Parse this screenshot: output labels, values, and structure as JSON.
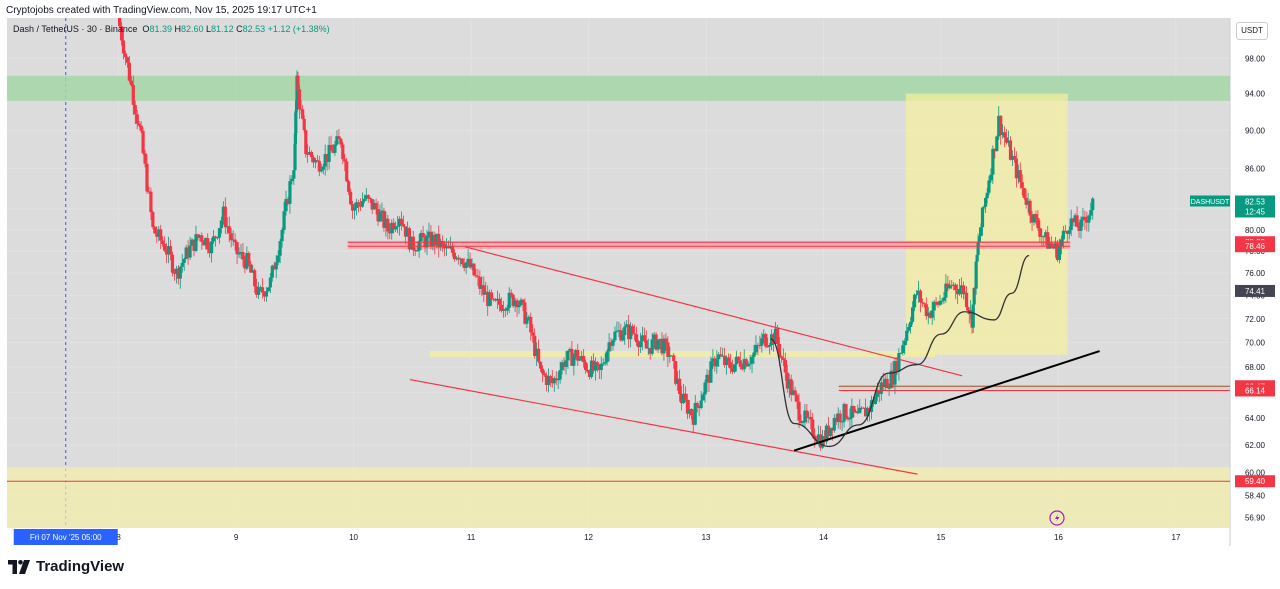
{
  "credit": "Cryptojobs created with TradingView.com, Nov 15, 2025 19:17 UTC+1",
  "symbol": {
    "name": "Dash / TetherUS · 30 · Binance",
    "o_label": "O",
    "o": "81.39",
    "h_label": "H",
    "h": "82.60",
    "l_label": "L",
    "l": "81.12",
    "c_label": "C",
    "c": "82.53",
    "change": "+1.12 (+1.38%)"
  },
  "unit_badge": "USDT",
  "logo_text": "TradingView",
  "colors": {
    "up": "#089981",
    "down": "#f23645",
    "sma": "#2962ff"
  },
  "chart_data": {
    "type": "candlestick",
    "y_scale": "log",
    "ylim": [
      56.2,
      102.8
    ],
    "xlim": [
      7.05,
      17.46
    ],
    "yticks": [
      "98.00",
      "94.00",
      "90.00",
      "86.00",
      "82.00",
      "80.00",
      "78.00",
      "76.00",
      "74.00",
      "72.00",
      "70.00",
      "68.00",
      "66.00",
      "64.00",
      "62.00",
      "60.00",
      "58.40",
      "56.90"
    ],
    "xticks": [
      {
        "x": 8,
        "label": "8"
      },
      {
        "x": 9,
        "label": "9"
      },
      {
        "x": 10,
        "label": "10"
      },
      {
        "x": 11,
        "label": "11"
      },
      {
        "x": 12,
        "label": "12"
      },
      {
        "x": 13,
        "label": "13"
      },
      {
        "x": 14,
        "label": "14"
      },
      {
        "x": 15,
        "label": "15"
      },
      {
        "x": 16,
        "label": "16"
      },
      {
        "x": 17,
        "label": "17"
      }
    ],
    "cursor": {
      "x": 7.55,
      "label": "Fri 07 Nov '25   05:00"
    },
    "price_labels": [
      {
        "text": "DASHUSDT",
        "sub": "82.53",
        "sub2": "12:45",
        "value": 82.53,
        "color": "#089981"
      },
      {
        "text": "78.83",
        "value": 78.83,
        "color": "#f23645"
      },
      {
        "text": "78.46",
        "value": 78.46,
        "color": "#f23645"
      },
      {
        "text": "74.41",
        "value": 74.41,
        "color": "#434651"
      },
      {
        "text": "66.47",
        "value": 66.47,
        "color": "#f23645"
      },
      {
        "text": "66.14",
        "value": 66.14,
        "color": "#f23645"
      },
      {
        "text": "59.40",
        "value": 59.4,
        "color": "#f23645"
      }
    ],
    "zones": [
      {
        "kind": "supply",
        "x0": 7.05,
        "x1": 17.46,
        "y0": 93.2,
        "y1": 96.0,
        "color": "#a5d6a7"
      },
      {
        "kind": "demand",
        "x0": 7.05,
        "x1": 17.46,
        "y0": 56.2,
        "y1": 60.4,
        "color": "#f5efa8"
      },
      {
        "kind": "target-box",
        "x0": 14.7,
        "x1": 16.08,
        "y0": 69.0,
        "y1": 94.0,
        "color": "#f7ef9b"
      },
      {
        "kind": "resistance-band",
        "x0": 9.95,
        "x1": 16.1,
        "y0": 78.2,
        "y1": 78.95,
        "color": "#f6a6ad"
      },
      {
        "kind": "support-band",
        "x0": 14.13,
        "x1": 17.46,
        "y0": 66.0,
        "y1": 66.55,
        "color": "#c8d6c8"
      },
      {
        "kind": "retest-band",
        "x0": 10.65,
        "x1": 14.95,
        "y0": 68.8,
        "y1": 69.3,
        "color": "#f7ef9b"
      }
    ],
    "lines": [
      {
        "kind": "horizontal",
        "x0": 9.95,
        "x1": 16.1,
        "y0": 78.83,
        "y1": 78.83,
        "color": "#f23645",
        "width": 1
      },
      {
        "kind": "horizontal",
        "x0": 9.95,
        "x1": 16.1,
        "y0": 78.46,
        "y1": 78.46,
        "color": "#f23645",
        "width": 1
      },
      {
        "kind": "horizontal",
        "x0": 14.13,
        "x1": 17.46,
        "y0": 66.47,
        "y1": 66.47,
        "color": "#a0522d",
        "width": 1
      },
      {
        "kind": "horizontal",
        "x0": 14.13,
        "x1": 17.46,
        "y0": 66.14,
        "y1": 66.14,
        "color": "#f23645",
        "width": 1
      },
      {
        "kind": "horizontal",
        "x0": 7.05,
        "x1": 17.46,
        "y0": 59.4,
        "y1": 59.4,
        "color": "#f23645",
        "width": 1
      },
      {
        "kind": "channel-top",
        "x0": 10.95,
        "x1": 15.18,
        "y0": 78.4,
        "y1": 67.3,
        "color": "#f23645",
        "width": 1.2
      },
      {
        "kind": "channel-bottom",
        "x0": 10.48,
        "x1": 14.8,
        "y0": 67.0,
        "y1": 59.9,
        "color": "#f23645",
        "width": 1.2
      },
      {
        "kind": "trendline",
        "x0": 13.75,
        "x1": 16.35,
        "y0": 61.6,
        "y1": 69.3,
        "color": "#000000",
        "width": 2
      }
    ],
    "curve": {
      "color": "#333333",
      "points": [
        [
          13.55,
          70.3
        ],
        [
          13.75,
          63.6
        ],
        [
          14.05,
          61.9
        ],
        [
          14.3,
          63.5
        ],
        [
          14.55,
          67.5
        ],
        [
          14.8,
          68.2
        ],
        [
          15.0,
          70.7
        ],
        [
          15.2,
          72.6
        ],
        [
          15.45,
          71.9
        ],
        [
          15.6,
          74.2
        ],
        [
          15.75,
          77.6
        ]
      ]
    },
    "series": [
      {
        "name": "DASHUSDT",
        "ohlc_points": [
          [
            8.0,
            103.0
          ],
          [
            8.1,
            96.0
          ],
          [
            8.2,
            89.0
          ],
          [
            8.3,
            80.0
          ],
          [
            8.4,
            78.5
          ],
          [
            8.5,
            76.0
          ],
          [
            8.6,
            78.0
          ],
          [
            8.7,
            79.5
          ],
          [
            8.8,
            78.5
          ],
          [
            8.9,
            81.5
          ],
          [
            9.0,
            78.0
          ],
          [
            9.1,
            77.0
          ],
          [
            9.2,
            74.0
          ],
          [
            9.3,
            75.2
          ],
          [
            9.4,
            80.0
          ],
          [
            9.5,
            86.5
          ],
          [
            9.52,
            95.5
          ],
          [
            9.6,
            88.0
          ],
          [
            9.7,
            86.5
          ],
          [
            9.8,
            87.5
          ],
          [
            9.9,
            89.0
          ],
          [
            10.0,
            82.0
          ],
          [
            10.1,
            83.0
          ],
          [
            10.2,
            82.0
          ],
          [
            10.3,
            80.0
          ],
          [
            10.4,
            81.5
          ],
          [
            10.5,
            78.5
          ],
          [
            10.6,
            79.0
          ],
          [
            10.7,
            79.0
          ],
          [
            10.8,
            78.0
          ],
          [
            10.9,
            77.8
          ],
          [
            11.0,
            76.5
          ],
          [
            11.1,
            74.5
          ],
          [
            11.2,
            73.0
          ],
          [
            11.3,
            73.5
          ],
          [
            11.4,
            73.8
          ],
          [
            11.5,
            71.5
          ],
          [
            11.6,
            67.5
          ],
          [
            11.7,
            66.7
          ],
          [
            11.8,
            68.5
          ],
          [
            11.9,
            69.0
          ],
          [
            12.0,
            68.0
          ],
          [
            12.1,
            67.5
          ],
          [
            12.2,
            70.5
          ],
          [
            12.3,
            71.0
          ],
          [
            12.4,
            70.8
          ],
          [
            12.5,
            69.5
          ],
          [
            12.6,
            70.2
          ],
          [
            12.7,
            69.0
          ],
          [
            12.8,
            65.5
          ],
          [
            12.9,
            64.2
          ],
          [
            13.0,
            66.5
          ],
          [
            13.1,
            69.0
          ],
          [
            13.2,
            68.0
          ],
          [
            13.3,
            68.5
          ],
          [
            13.4,
            68.8
          ],
          [
            13.5,
            70.3
          ],
          [
            13.6,
            70.5
          ],
          [
            13.7,
            67.0
          ],
          [
            13.8,
            64.5
          ],
          [
            13.9,
            63.3
          ],
          [
            14.0,
            62.3
          ],
          [
            14.1,
            64.0
          ],
          [
            14.2,
            64.5
          ],
          [
            14.3,
            64.0
          ],
          [
            14.4,
            64.8
          ],
          [
            14.5,
            66.5
          ],
          [
            14.6,
            67.3
          ],
          [
            14.7,
            70.5
          ],
          [
            14.8,
            74.2
          ],
          [
            14.9,
            72.5
          ],
          [
            15.0,
            73.5
          ],
          [
            15.1,
            75.0
          ],
          [
            15.2,
            74.5
          ],
          [
            15.27,
            72.0
          ],
          [
            15.32,
            78.5
          ],
          [
            15.4,
            84.0
          ],
          [
            15.5,
            91.0
          ],
          [
            15.6,
            87.5
          ],
          [
            15.7,
            84.0
          ],
          [
            15.8,
            81.0
          ],
          [
            15.9,
            79.0
          ],
          [
            16.0,
            78.0
          ],
          [
            16.1,
            80.8
          ],
          [
            16.2,
            80.2
          ],
          [
            16.3,
            82.5
          ]
        ]
      }
    ]
  }
}
